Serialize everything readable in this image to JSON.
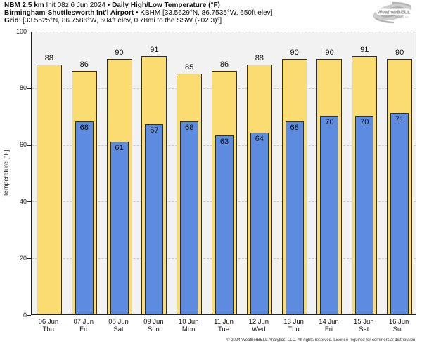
{
  "header": {
    "model": "NBM 2.5 km",
    "init": "Init 08z 6 Jun 2024",
    "sep": "•",
    "product": "Daily High/Low Temperature (°F)",
    "station_name": "Birmingham-Shuttlesworth Int'l Airport",
    "station_info": "KBHM [33.5629°N, 86.7535°W, 650ft elev]",
    "grid_label": "Grid",
    "grid_info": ": [33.5525°N, 86.7586°W, 604ft elev, 0.78mi to the SSW (202.3)°]"
  },
  "logo": {
    "brand": "WeatherBELL",
    "sub": "Analytics LLC"
  },
  "footer": {
    "copyright": "© 2024 WeatherBELL Analytics, LLC. All rights reserved. License required for commercial distribution."
  },
  "chart_data": {
    "type": "bar",
    "title": "Daily High/Low Temperature (°F)",
    "xlabel": "",
    "ylabel": "Temperature [°F]",
    "ylim": [
      0,
      100
    ],
    "yticks": [
      0,
      20,
      40,
      60,
      80,
      100
    ],
    "grid": "horizontal dashed gridlines at each y tick",
    "legend": "none",
    "plot_background": "#F2F2F2",
    "bar_border_color": "#2e2e2e",
    "categories": [
      {
        "date": "06 Jun",
        "day": "Thu"
      },
      {
        "date": "07 Jun",
        "day": "Fri"
      },
      {
        "date": "08 Jun",
        "day": "Sat"
      },
      {
        "date": "09 Jun",
        "day": "Sun"
      },
      {
        "date": "10 Jun",
        "day": "Mon"
      },
      {
        "date": "11 Jun",
        "day": "Tue"
      },
      {
        "date": "12 Jun",
        "day": "Wed"
      },
      {
        "date": "13 Jun",
        "day": "Thu"
      },
      {
        "date": "14 Jun",
        "day": "Fri"
      },
      {
        "date": "15 Jun",
        "day": "Sat"
      },
      {
        "date": "16 Jun",
        "day": "Sun"
      }
    ],
    "series": [
      {
        "name": "High",
        "color": "#FADC71",
        "values": [
          88,
          86,
          90,
          91,
          85,
          86,
          88,
          90,
          90,
          91,
          90
        ]
      },
      {
        "name": "Low",
        "color": "#5C8BE0",
        "values": [
          null,
          68,
          61,
          67,
          68,
          63,
          64,
          68,
          70,
          70,
          71
        ]
      }
    ]
  }
}
